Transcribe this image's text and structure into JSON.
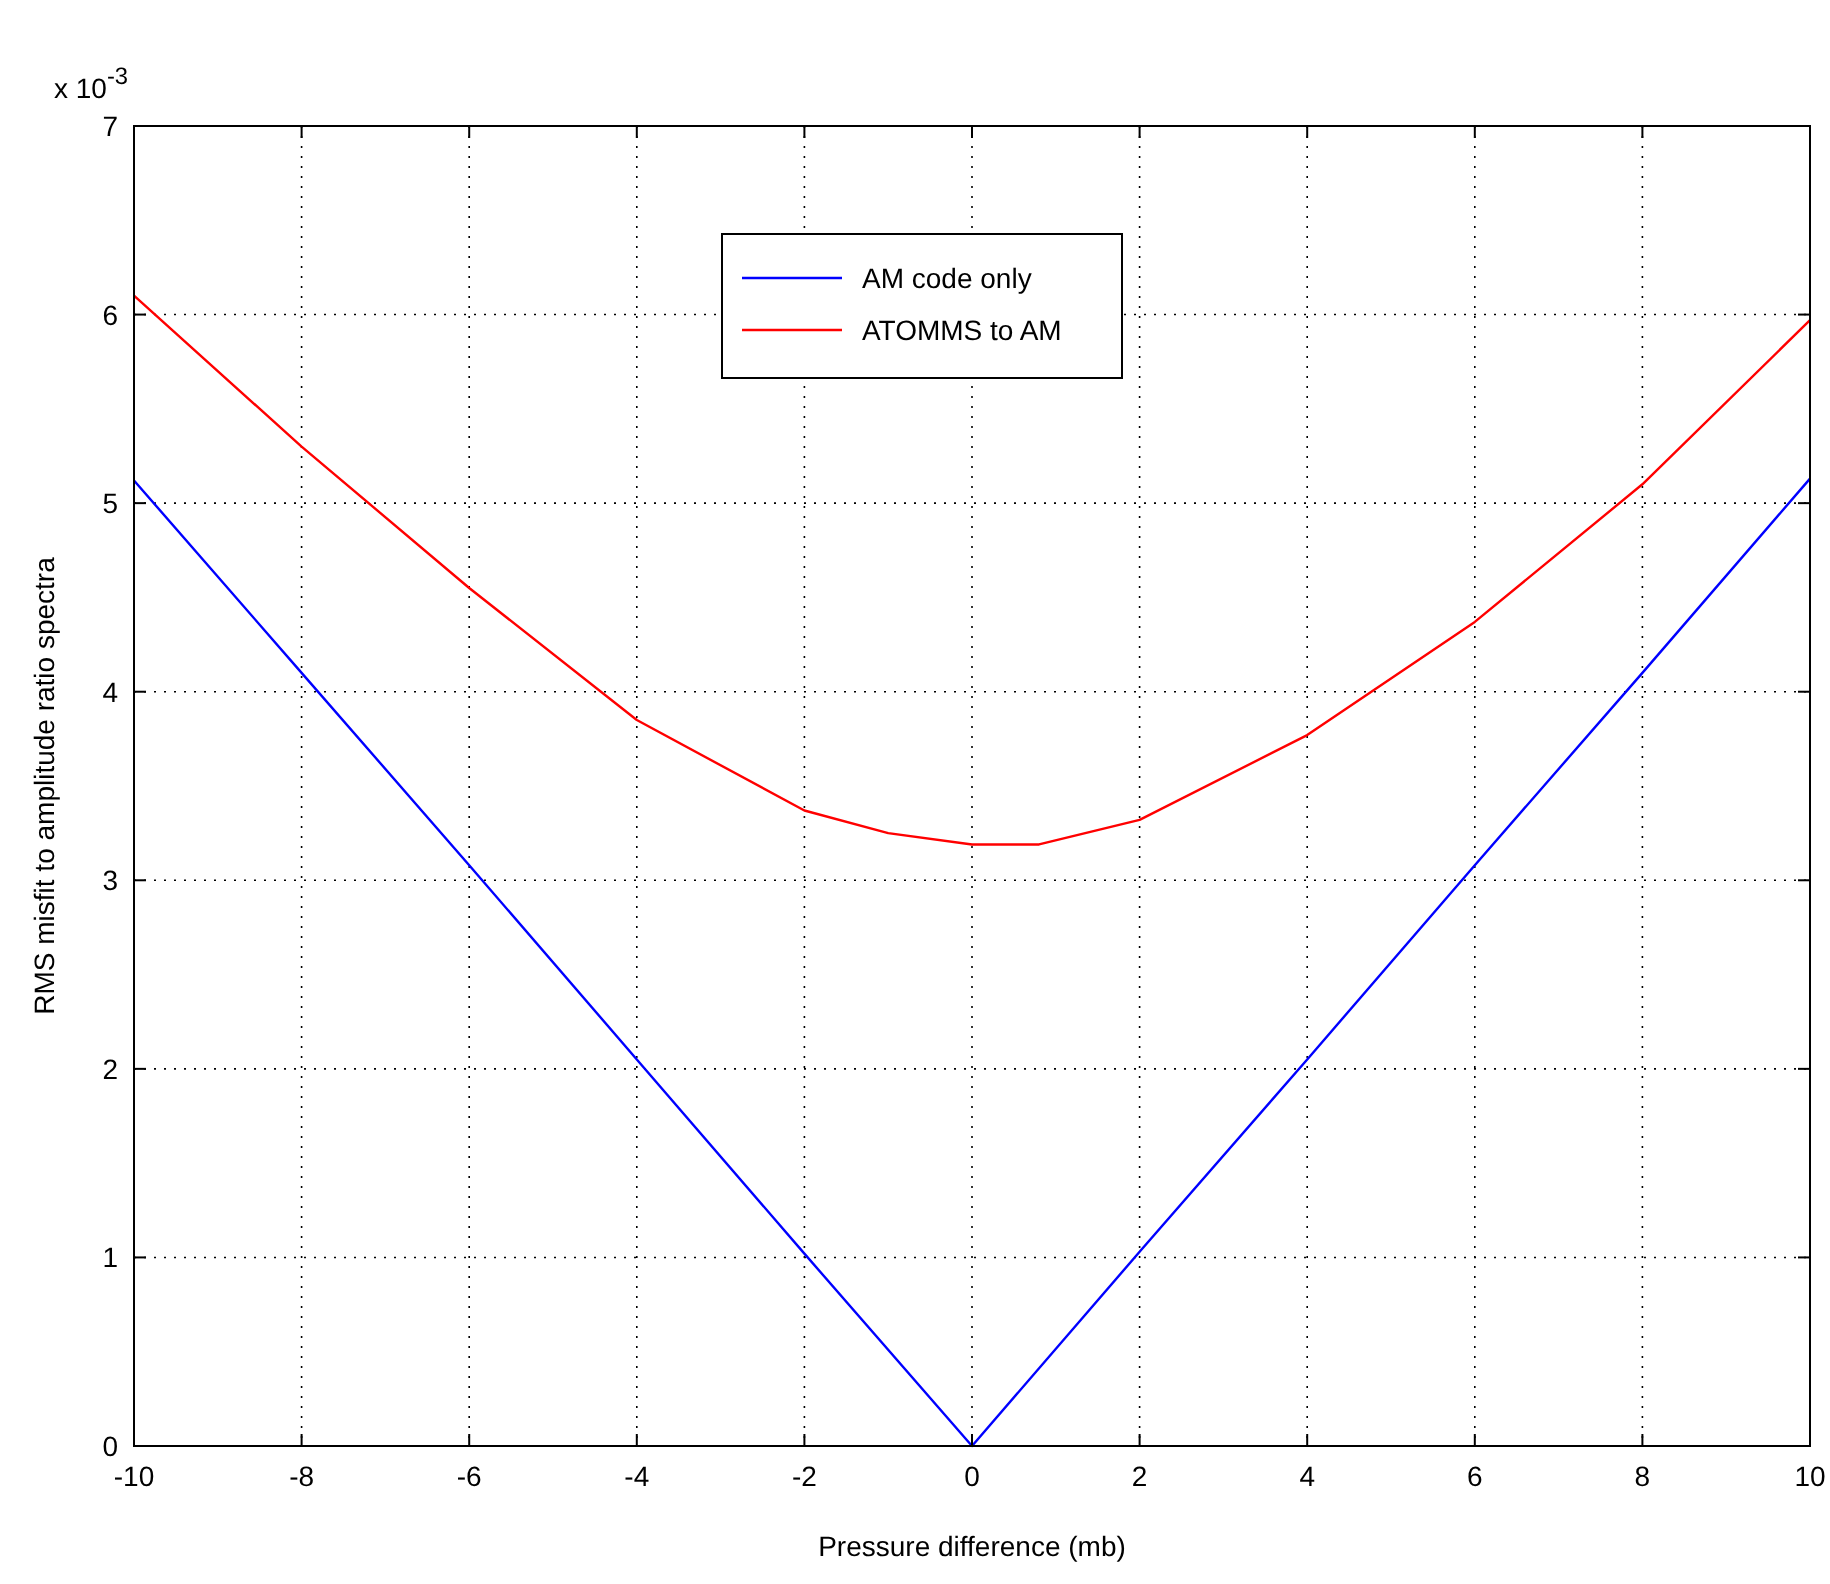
{
  "chart_data": {
    "type": "line",
    "xlabel": "Pressure difference (mb)",
    "ylabel": "RMS misfit to amplitude ratio spectra",
    "annotations": [
      "x 10$^{-3}$"
    ],
    "xlim": [
      -10,
      10
    ],
    "xticks": [
      -10,
      -8,
      -6,
      -4,
      -2,
      0,
      2,
      4,
      6,
      8,
      10
    ],
    "ylim": [
      0,
      7
    ],
    "yticks": [
      0,
      1,
      2,
      3,
      4,
      5,
      6,
      7
    ],
    "grid": true,
    "legend": "top",
    "line_style": "solid",
    "marker": "none",
    "series": [
      {
        "name": "AM code only",
        "color": "#0000ff",
        "x": [
          -10,
          -8,
          -6,
          -4,
          -2,
          0,
          2,
          4,
          6,
          8,
          10
        ],
        "values": [
          5.12,
          4.1,
          3.08,
          2.05,
          1.02,
          0,
          1.03,
          2.05,
          3.08,
          4.1,
          5.13
        ]
      },
      {
        "name": "ATOMMS to AM",
        "color": "#ff0000",
        "x": [
          -10,
          -8,
          -6,
          -4,
          -2,
          -1,
          0,
          0.8,
          2,
          4,
          6,
          8,
          10
        ],
        "values": [
          6.1,
          5.3,
          4.55,
          3.85,
          3.37,
          3.25,
          3.19,
          3.19,
          3.32,
          3.77,
          4.37,
          5.1,
          5.97
        ]
      }
    ]
  }
}
